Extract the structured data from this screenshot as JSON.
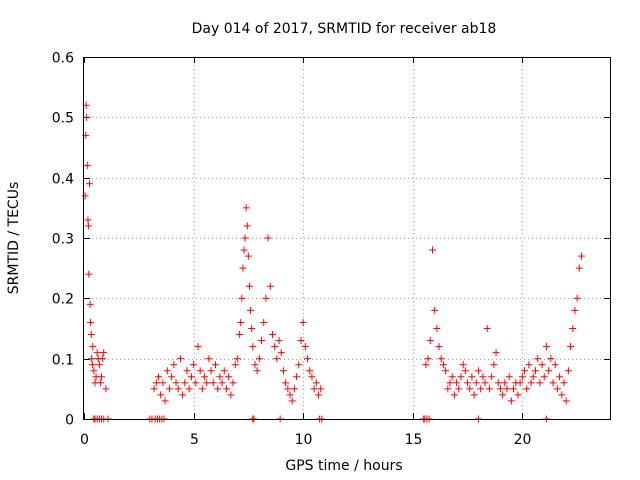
{
  "chart_data": {
    "type": "scatter",
    "title": "Day 014 of 2017, SRMTID for receiver ab18",
    "xlabel": "GPS time / hours",
    "ylabel": "SRMTID / TECUs",
    "xlim": [
      0,
      24
    ],
    "ylim": [
      0,
      0.6
    ],
    "xticks": [
      0,
      5,
      10,
      15,
      20
    ],
    "xtick_labels": [
      "0",
      "5",
      "10",
      "15",
      "20"
    ],
    "yticks": [
      0,
      0.1,
      0.2,
      0.3,
      0.4,
      0.5,
      0.6
    ],
    "ytick_labels": [
      "0",
      "0.1",
      "0.2",
      "0.3",
      "0.4",
      "0.5",
      "0.6"
    ],
    "grid": true,
    "marker": "+",
    "color": "#ff0000",
    "series": [
      {
        "name": "SRMTID",
        "x": [
          0.05,
          0.08,
          0.1,
          0.12,
          0.15,
          0.18,
          0.2,
          0.22,
          0.25,
          0.28,
          0.3,
          0.33,
          0.35,
          0.38,
          0.4,
          0.45,
          0.5,
          0.55,
          0.6,
          0.65,
          0.7,
          0.75,
          0.8,
          0.85,
          0.9,
          1.0,
          3.2,
          3.3,
          3.4,
          3.5,
          3.6,
          3.7,
          3.8,
          3.9,
          4.0,
          4.1,
          4.2,
          4.3,
          4.4,
          4.5,
          4.6,
          4.7,
          4.8,
          4.9,
          5.0,
          5.1,
          5.2,
          5.3,
          5.4,
          5.5,
          5.6,
          5.7,
          5.8,
          5.9,
          6.0,
          6.1,
          6.2,
          6.3,
          6.4,
          6.5,
          6.6,
          6.7,
          6.8,
          6.9,
          7.0,
          7.1,
          7.15,
          7.2,
          7.25,
          7.3,
          7.35,
          7.4,
          7.45,
          7.5,
          7.55,
          7.6,
          7.65,
          7.7,
          7.8,
          7.9,
          8.0,
          8.1,
          8.2,
          8.3,
          8.4,
          8.5,
          8.6,
          8.7,
          8.8,
          8.9,
          9.0,
          9.1,
          9.2,
          9.3,
          9.4,
          9.5,
          9.6,
          9.7,
          9.8,
          9.9,
          10.0,
          10.1,
          10.2,
          10.3,
          10.4,
          10.5,
          10.6,
          10.7,
          10.8,
          15.6,
          15.7,
          15.8,
          15.9,
          16.0,
          16.1,
          16.2,
          16.3,
          16.4,
          16.5,
          16.6,
          16.7,
          16.8,
          16.9,
          17.0,
          17.1,
          17.2,
          17.3,
          17.4,
          17.5,
          17.6,
          17.7,
          17.8,
          17.9,
          18.0,
          18.1,
          18.2,
          18.3,
          18.4,
          18.5,
          18.6,
          18.7,
          18.8,
          18.9,
          19.0,
          19.1,
          19.2,
          19.3,
          19.4,
          19.5,
          19.6,
          19.7,
          19.8,
          19.9,
          20.0,
          20.1,
          20.2,
          20.3,
          20.4,
          20.5,
          20.6,
          20.7,
          20.8,
          20.9,
          21.0,
          21.1,
          21.2,
          21.3,
          21.4,
          21.5,
          21.6,
          21.7,
          21.8,
          21.9,
          22.0,
          22.1,
          22.2,
          22.3,
          22.4,
          22.5,
          22.6,
          22.7,
          0.45,
          0.5,
          0.6,
          0.7,
          0.8,
          0.9,
          1.1,
          3.0,
          3.1,
          3.25,
          3.35,
          3.45,
          3.55,
          3.65,
          7.7,
          7.75,
          8.95,
          10.75,
          10.85,
          15.5,
          15.55,
          15.65,
          15.75,
          18.0,
          21.1
        ],
        "y": [
          0.37,
          0.47,
          0.52,
          0.5,
          0.42,
          0.33,
          0.32,
          0.24,
          0.39,
          0.19,
          0.16,
          0.14,
          0.1,
          0.09,
          0.12,
          0.08,
          0.06,
          0.07,
          0.11,
          0.1,
          0.09,
          0.06,
          0.07,
          0.1,
          0.11,
          0.05,
          0.05,
          0.06,
          0.07,
          0.04,
          0.06,
          0.03,
          0.08,
          0.05,
          0.07,
          0.09,
          0.06,
          0.05,
          0.1,
          0.04,
          0.06,
          0.08,
          0.05,
          0.07,
          0.09,
          0.06,
          0.12,
          0.08,
          0.05,
          0.07,
          0.06,
          0.1,
          0.08,
          0.06,
          0.09,
          0.05,
          0.07,
          0.06,
          0.08,
          0.05,
          0.07,
          0.04,
          0.06,
          0.09,
          0.1,
          0.14,
          0.16,
          0.2,
          0.25,
          0.28,
          0.3,
          0.35,
          0.32,
          0.27,
          0.22,
          0.18,
          0.15,
          0.12,
          0.09,
          0.08,
          0.1,
          0.13,
          0.16,
          0.2,
          0.3,
          0.22,
          0.14,
          0.12,
          0.1,
          0.13,
          0.11,
          0.08,
          0.06,
          0.05,
          0.04,
          0.03,
          0.05,
          0.07,
          0.09,
          0.13,
          0.16,
          0.12,
          0.1,
          0.08,
          0.07,
          0.05,
          0.06,
          0.04,
          0.05,
          0.09,
          0.1,
          0.13,
          0.28,
          0.18,
          0.15,
          0.12,
          0.1,
          0.09,
          0.08,
          0.05,
          0.06,
          0.07,
          0.04,
          0.06,
          0.05,
          0.07,
          0.09,
          0.08,
          0.06,
          0.05,
          0.07,
          0.04,
          0.06,
          0.08,
          0.05,
          0.07,
          0.06,
          0.15,
          0.05,
          0.07,
          0.09,
          0.11,
          0.06,
          0.05,
          0.04,
          0.06,
          0.05,
          0.07,
          0.03,
          0.05,
          0.06,
          0.04,
          0.06,
          0.07,
          0.08,
          0.05,
          0.09,
          0.06,
          0.07,
          0.08,
          0.1,
          0.06,
          0.09,
          0.07,
          0.12,
          0.08,
          0.1,
          0.06,
          0.09,
          0.05,
          0.07,
          0.04,
          0.06,
          0.03,
          0.08,
          0.12,
          0.15,
          0.18,
          0.2,
          0.25,
          0.27,
          0,
          0,
          0,
          0,
          0,
          0,
          0,
          0,
          0,
          0,
          0,
          0,
          0,
          0,
          0,
          0,
          0,
          0,
          0,
          0,
          0,
          0,
          0,
          0,
          0
        ]
      }
    ]
  }
}
